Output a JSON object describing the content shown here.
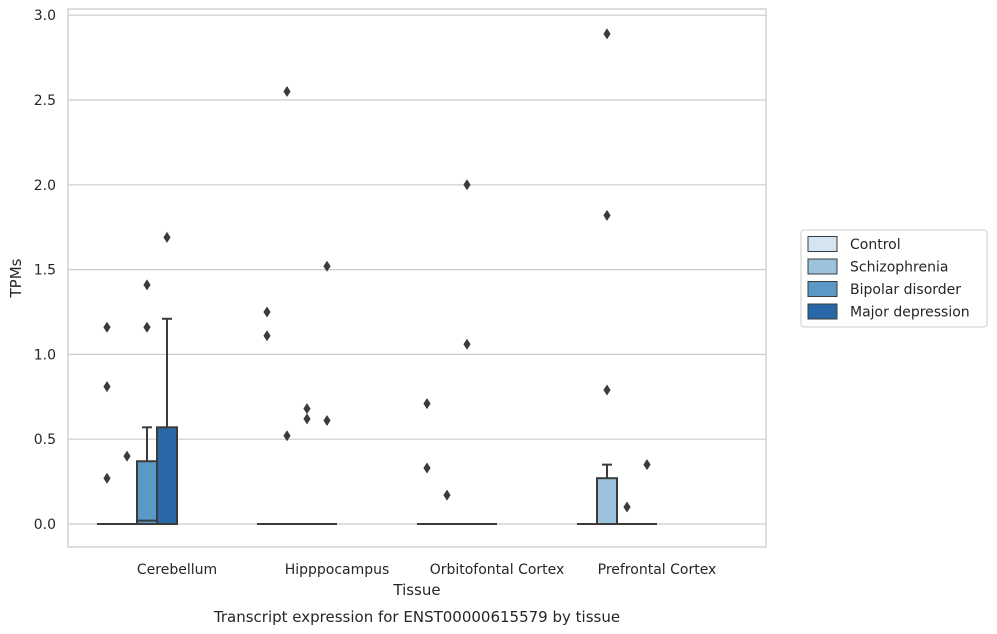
{
  "chart_data": {
    "type": "box",
    "xlabel": "Tissue",
    "ylabel": "TPMs",
    "caption": "Transcript expression for ENST00000615579 by tissue",
    "ylim": [
      -0.14,
      3.04
    ],
    "yticks": [
      "0.0",
      "0.5",
      "1.0",
      "1.5",
      "2.0",
      "2.5",
      "3.0"
    ],
    "ytick_values": [
      0,
      0.5,
      1.0,
      1.5,
      2.0,
      2.5,
      3.0
    ],
    "grid": true,
    "legend_position": "right",
    "categories": [
      "Cerebellum",
      "Hipppocampus",
      "Orbitofontal Cortex",
      "Prefrontal Cortex"
    ],
    "series": [
      {
        "name": "Control",
        "color": "#d4e4f1",
        "boxes": [
          {
            "q1": 0,
            "median": 0,
            "q3": 0,
            "whisker_low": 0,
            "whisker_high": 0,
            "outliers": [
              1.16,
              0.81,
              0.27
            ]
          },
          {
            "q1": 0,
            "median": 0,
            "q3": 0,
            "whisker_low": 0,
            "whisker_high": 0,
            "outliers": [
              1.25,
              1.11
            ]
          },
          {
            "q1": 0,
            "median": 0,
            "q3": 0,
            "whisker_low": 0,
            "whisker_high": 0,
            "outliers": [
              0.71,
              0.33
            ]
          },
          {
            "q1": 0,
            "median": 0,
            "q3": 0,
            "whisker_low": 0,
            "whisker_high": 0,
            "outliers": []
          }
        ]
      },
      {
        "name": "Schizophrenia",
        "color": "#9bc3de",
        "boxes": [
          {
            "q1": 0,
            "median": 0,
            "q3": 0,
            "whisker_low": 0,
            "whisker_high": 0,
            "outliers": [
              0.4
            ]
          },
          {
            "q1": 0,
            "median": 0,
            "q3": 0,
            "whisker_low": 0,
            "whisker_high": 0,
            "outliers": [
              2.55,
              0.52
            ]
          },
          {
            "q1": 0,
            "median": 0,
            "q3": 0,
            "whisker_low": 0,
            "whisker_high": 0,
            "outliers": [
              0.17
            ]
          },
          {
            "q1": 0,
            "median": 0,
            "q3": 0.27,
            "whisker_low": 0,
            "whisker_high": 0.35,
            "outliers": [
              2.89,
              1.82,
              0.79
            ]
          }
        ]
      },
      {
        "name": "Bipolar disorder",
        "color": "#5a98c6",
        "boxes": [
          {
            "q1": 0,
            "median": 0.02,
            "q3": 0.37,
            "whisker_low": 0,
            "whisker_high": 0.57,
            "outliers": [
              1.41,
              1.16
            ]
          },
          {
            "q1": 0,
            "median": 0,
            "q3": 0,
            "whisker_low": 0,
            "whisker_high": 0,
            "outliers": [
              0.68,
              0.62
            ]
          },
          {
            "q1": 0,
            "median": 0,
            "q3": 0,
            "whisker_low": 0,
            "whisker_high": 0,
            "outliers": [
              2.0,
              1.06
            ]
          },
          {
            "q1": 0,
            "median": 0,
            "q3": 0,
            "whisker_low": 0,
            "whisker_high": 0,
            "outliers": [
              0.1
            ]
          }
        ]
      },
      {
        "name": "Major depression",
        "color": "#2968a7",
        "boxes": [
          {
            "q1": 0,
            "median": 0,
            "q3": 0.57,
            "whisker_low": 0,
            "whisker_high": 1.21,
            "outliers": [
              1.69
            ]
          },
          {
            "q1": 0,
            "median": 0,
            "q3": 0,
            "whisker_low": 0,
            "whisker_high": 0,
            "outliers": [
              1.52,
              0.61
            ]
          },
          {
            "q1": 0,
            "median": 0,
            "q3": 0,
            "whisker_low": 0,
            "whisker_high": 0,
            "outliers": []
          },
          {
            "q1": 0,
            "median": 0,
            "q3": 0,
            "whisker_low": 0,
            "whisker_high": 0,
            "outliers": [
              0.35
            ]
          }
        ]
      }
    ]
  }
}
